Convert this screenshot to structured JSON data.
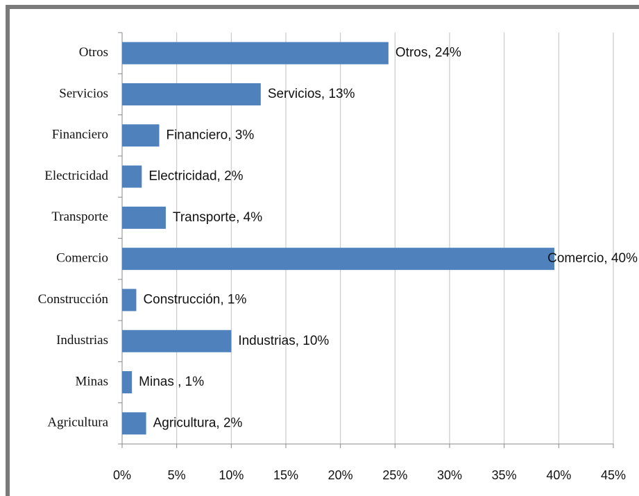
{
  "chart_data": {
    "type": "bar",
    "orientation": "horizontal",
    "categories": [
      "Otros",
      "Servicios",
      "Financiero",
      "Electricidad",
      "Transporte",
      "Comercio",
      "Construcción",
      "Industrias",
      "Minas",
      "Agricultura"
    ],
    "values": [
      24.4,
      12.7,
      3.4,
      1.8,
      4.0,
      39.6,
      1.3,
      10,
      0.9,
      2.2
    ],
    "value_labels": [
      "Otros, 24%",
      "Servicios, 13%",
      "Financiero, 3%",
      "Electricidad, 2%",
      "Transporte, 4%",
      "Comercio, 40%",
      "Construcción, 1%",
      "Industrias, 10%",
      "Minas , 1%",
      "Agricultura, 2%"
    ],
    "color": "#4f81bd",
    "xlim": [
      0,
      45
    ],
    "xticks": [
      {
        "value": 0,
        "label": "0%"
      },
      {
        "value": 5,
        "label": "5%"
      },
      {
        "value": 10,
        "label": "10%"
      },
      {
        "value": 15,
        "label": "15%"
      },
      {
        "value": 20,
        "label": "20%"
      },
      {
        "value": 25,
        "label": "25%"
      },
      {
        "value": 30,
        "label": "30%"
      },
      {
        "value": 35,
        "label": "35%"
      },
      {
        "value": 40,
        "label": "40%"
      },
      {
        "value": 45,
        "label": "45%"
      }
    ],
    "grid": true
  }
}
